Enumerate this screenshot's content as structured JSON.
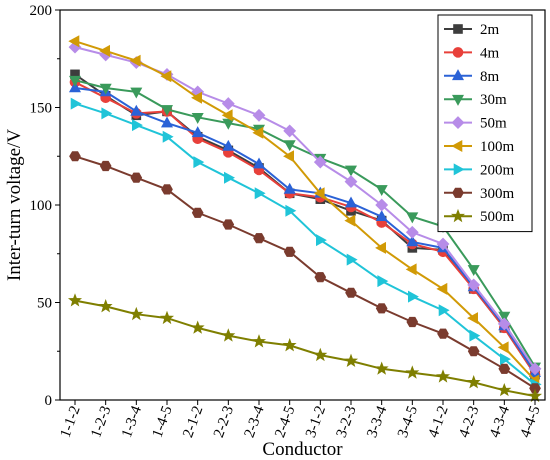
{
  "chart_data": {
    "type": "line",
    "title": "",
    "xlabel": "Conductor",
    "ylabel": "Inter-turn voltage/V",
    "ylim": [
      0,
      200
    ],
    "yticks": [
      0,
      50,
      100,
      150,
      200
    ],
    "grid": false,
    "legend_position": "top-right",
    "categories": [
      "1-1-2",
      "1-2-3",
      "1-3-4",
      "1-4-5",
      "2-1-2",
      "2-2-3",
      "2-3-4",
      "2-4-5",
      "3-1-2",
      "3-2-3",
      "3-3-4",
      "3-4-5",
      "4-1-2",
      "4-2-3",
      "4-3-4",
      "4-4-5"
    ],
    "series": [
      {
        "name": "2m",
        "color": "#3d3d3d",
        "marker": "square",
        "values": [
          167,
          156,
          146,
          148,
          135,
          128,
          119,
          106,
          103,
          97,
          92,
          78,
          77,
          57,
          37,
          13
        ]
      },
      {
        "name": "4m",
        "color": "#e8403a",
        "marker": "circle",
        "values": [
          163,
          155,
          147,
          148,
          134,
          127,
          118,
          106,
          104,
          99,
          91,
          80,
          76,
          57,
          37,
          13
        ]
      },
      {
        "name": "8m",
        "color": "#2b62d6",
        "marker": "triangle-up",
        "values": [
          160,
          158,
          148,
          142,
          137,
          130,
          121,
          108,
          106,
          101,
          94,
          81,
          78,
          58,
          38,
          14
        ]
      },
      {
        "name": "30m",
        "color": "#3a9a5b",
        "marker": "triangle-down",
        "values": [
          164,
          160,
          158,
          149,
          145,
          142,
          139,
          131,
          124,
          118,
          108,
          94,
          89,
          67,
          43,
          17
        ]
      },
      {
        "name": "50m",
        "color": "#b78ce8",
        "marker": "diamond",
        "values": [
          181,
          177,
          173,
          167,
          158,
          152,
          146,
          138,
          122,
          112,
          100,
          86,
          80,
          59,
          39,
          16
        ]
      },
      {
        "name": "100m",
        "color": "#d19a06",
        "marker": "triangle-left",
        "values": [
          184,
          179,
          174,
          166,
          155,
          146,
          137,
          125,
          106,
          92,
          78,
          67,
          57,
          42,
          27,
          10
        ]
      },
      {
        "name": "200m",
        "color": "#20c4d8",
        "marker": "triangle-right",
        "values": [
          152,
          147,
          141,
          135,
          122,
          114,
          106,
          97,
          82,
          72,
          61,
          53,
          46,
          33,
          21,
          8
        ]
      },
      {
        "name": "300m",
        "color": "#7a3b2e",
        "marker": "hexagon",
        "values": [
          125,
          120,
          114,
          108,
          96,
          90,
          83,
          76,
          63,
          55,
          47,
          40,
          34,
          25,
          16,
          6
        ]
      },
      {
        "name": "500m",
        "color": "#7f7f00",
        "marker": "star",
        "values": [
          51,
          48,
          44,
          42,
          37,
          33,
          30,
          28,
          23,
          20,
          16,
          14,
          12,
          9,
          5,
          2
        ]
      }
    ]
  }
}
